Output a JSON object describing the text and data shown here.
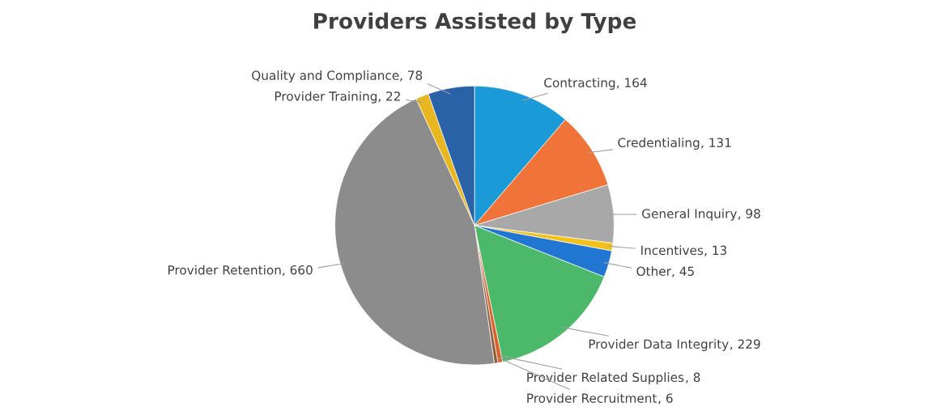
{
  "chart_data": {
    "type": "pie",
    "title": "Providers Assisted by Type",
    "categories": [
      "Contracting",
      "Credentialing",
      "General Inquiry",
      "Incentives",
      "Other",
      "Provider Data Integrity",
      "Provider Related Supplies",
      "Provider Recruitment",
      "Provider Retention",
      "Provider Training",
      "Quality and Compliance"
    ],
    "values": [
      164,
      131,
      98,
      13,
      45,
      229,
      8,
      6,
      660,
      22,
      78
    ],
    "colors": [
      "#1a9ad6",
      "#f0743a",
      "#a8a8a8",
      "#f2c21b",
      "#2176d2",
      "#4cb86a",
      "#d9622b",
      "#8f5c3a",
      "#8c8c8c",
      "#e8b620",
      "#2a62a8"
    ],
    "value_labels": [
      ", 164",
      ", 131",
      ", 98",
      ", 13",
      ", 45",
      ", 229",
      ", 8",
      ", 6",
      ", 660",
      ", 22",
      ", 78"
    ],
    "legend": false
  }
}
